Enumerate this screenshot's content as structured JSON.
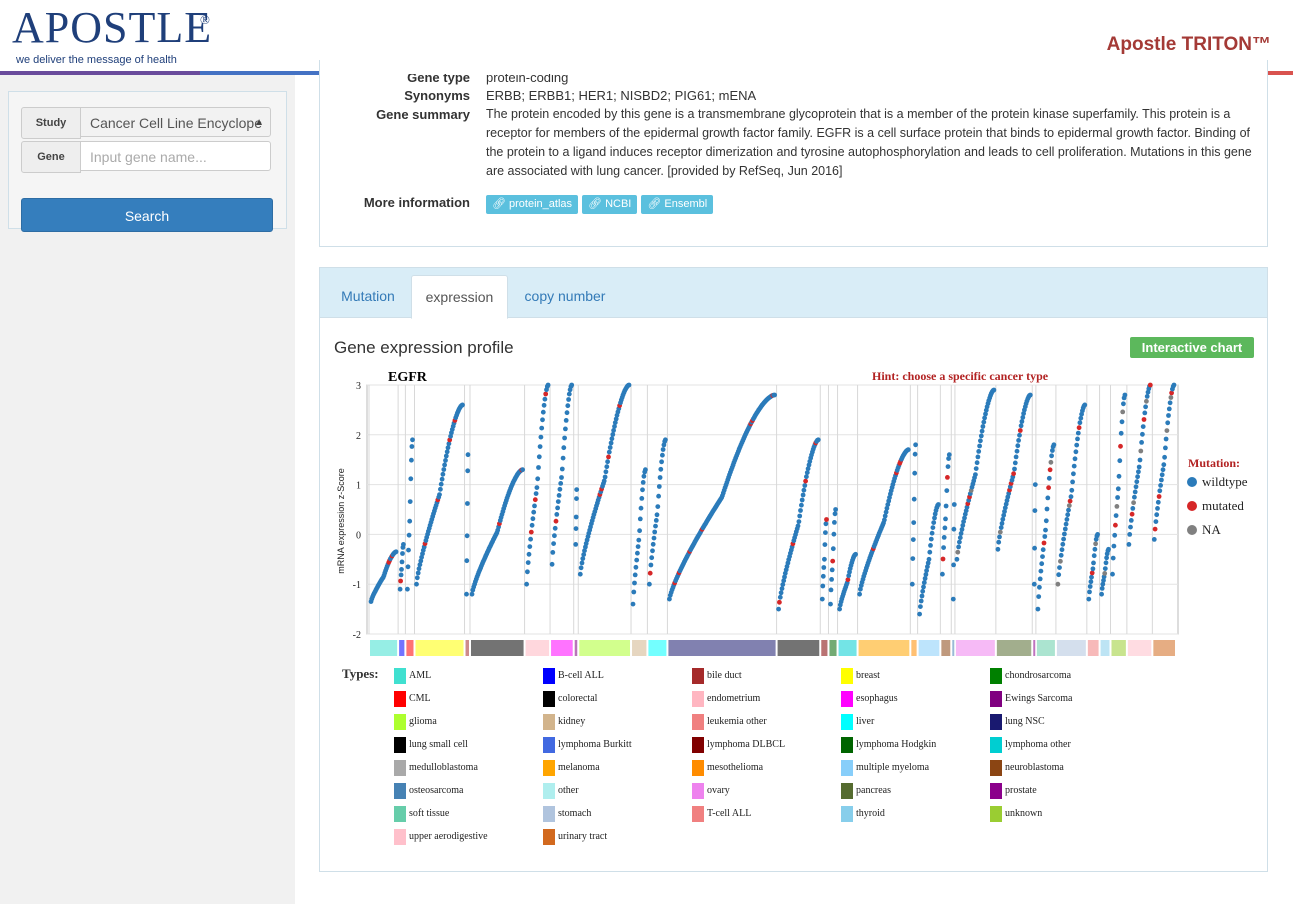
{
  "header": {
    "logo": "APOSTLE",
    "logo_mark": "®",
    "tagline": "we deliver the message of health",
    "product": "Apostle TRITON™"
  },
  "sidebar": {
    "study_label": "Study",
    "study_value": "Cancer Cell Line Encyclope",
    "gene_label": "Gene",
    "gene_placeholder": "Input gene name...",
    "search_button": "Search"
  },
  "gene_info": {
    "gene_type_key": "Gene type",
    "gene_type_val": "protein-coding",
    "synonyms_key": "Synonyms",
    "synonyms_val": "ERBB; ERBB1; HER1; NISBD2; PIG61; mENA",
    "summary_key": "Gene summary",
    "summary_val": "The protein encoded by this gene is a transmembrane glycoprotein that is a member of the protein kinase superfamily. This protein is a receptor for members of the epidermal growth factor family. EGFR is a cell surface protein that binds to epidermal growth factor. Binding of the protein to a ligand induces receptor dimerization and tyrosine autophosphorylation and leads to cell proliferation. Mutations in this gene are associated with lung cancer. [provided by RefSeq, Jun 2016]",
    "more_key": "More information",
    "links": [
      "protein_atlas",
      "NCBI",
      "Ensembl"
    ]
  },
  "tabs": {
    "items": [
      "Mutation",
      "expression",
      "copy number"
    ],
    "active": "expression"
  },
  "panel": {
    "title": "Gene expression profile",
    "interactive_button": "Interactive chart"
  },
  "chart_data": {
    "type": "scatter",
    "title": "EGFR",
    "hint": "Hint: choose a specific cancer type",
    "ylabel": "mRNA expression z-Score",
    "xlabel": "",
    "ylim": [
      -2,
      3
    ],
    "yticks": [
      "3",
      "2",
      "1",
      "0",
      "-1",
      "-2"
    ],
    "legend_title": "Mutation:",
    "legend": [
      {
        "name": "wildtype",
        "color": "#2b7bba"
      },
      {
        "name": "mutated",
        "color": "#d62728"
      },
      {
        "name": "NA",
        "color": "#808080"
      }
    ],
    "legend_placement": "right",
    "grid": true,
    "groups": [
      {
        "type": "AML",
        "n": 32,
        "lo": -1.35,
        "hi": -0.35
      },
      {
        "type": "B-cell ALL",
        "n": 8,
        "lo": -1.1,
        "hi": -0.2
      },
      {
        "type": "CML",
        "n": 10,
        "lo": -1.1,
        "hi": 1.9
      },
      {
        "type": "breast",
        "n": 55,
        "lo": -1.0,
        "hi": 2.6
      },
      {
        "type": "bile duct",
        "n": 6,
        "lo": -1.2,
        "hi": 1.6
      },
      {
        "type": "colorectal",
        "n": 60,
        "lo": -1.2,
        "hi": 1.3
      },
      {
        "type": "endometrium",
        "n": 28,
        "lo": -1.0,
        "hi": 3.0
      },
      {
        "type": "esophagus",
        "n": 26,
        "lo": -0.6,
        "hi": 3.0
      },
      {
        "type": "Ewings Sarcoma",
        "n": 5,
        "lo": -0.2,
        "hi": 0.9
      },
      {
        "type": "glioma",
        "n": 58,
        "lo": -0.8,
        "hi": 3.0
      },
      {
        "type": "kidney",
        "n": 18,
        "lo": -1.4,
        "hi": 1.3
      },
      {
        "type": "liver",
        "n": 22,
        "lo": -1.0,
        "hi": 1.9
      },
      {
        "type": "lung NSC",
        "n": 120,
        "lo": -1.3,
        "hi": 2.8
      },
      {
        "type": "lung small cell",
        "n": 48,
        "lo": -1.5,
        "hi": 1.9
      },
      {
        "type": "lymphoma DLBCL",
        "n": 9,
        "lo": -1.3,
        "hi": 0.3
      },
      {
        "type": "lymphoma Hodgkin",
        "n": 10,
        "lo": -1.4,
        "hi": 0.5
      },
      {
        "type": "lymphoma other",
        "n": 22,
        "lo": -1.5,
        "hi": -0.4
      },
      {
        "type": "melanoma",
        "n": 58,
        "lo": -1.2,
        "hi": 1.7
      },
      {
        "type": "mesothelioma",
        "n": 8,
        "lo": -1.0,
        "hi": 1.8
      },
      {
        "type": "multiple myeloma",
        "n": 25,
        "lo": -1.6,
        "hi": 0.6
      },
      {
        "type": "neuroblastoma",
        "n": 12,
        "lo": -0.8,
        "hi": 1.6
      },
      {
        "type": "osteosarcoma",
        "n": 4,
        "lo": -1.3,
        "hi": 0.6
      },
      {
        "type": "ovary",
        "n": 45,
        "lo": -0.5,
        "hi": 2.9
      },
      {
        "type": "pancreas",
        "n": 40,
        "lo": -0.3,
        "hi": 2.8
      },
      {
        "type": "prostate",
        "n": 4,
        "lo": -1.0,
        "hi": 1.0
      },
      {
        "type": "soft tissue",
        "n": 22,
        "lo": -1.5,
        "hi": 1.8
      },
      {
        "type": "stomach",
        "n": 34,
        "lo": -1.0,
        "hi": 2.6
      },
      {
        "type": "T-cell ALL",
        "n": 14,
        "lo": -1.3,
        "hi": 0.0
      },
      {
        "type": "thyroid",
        "n": 12,
        "lo": -1.2,
        "hi": -0.3
      },
      {
        "type": "unknown",
        "n": 18,
        "lo": -0.8,
        "hi": 2.8
      },
      {
        "type": "upper aerodigestive",
        "n": 28,
        "lo": -0.2,
        "hi": 3.0
      },
      {
        "type": "urinary tract",
        "n": 26,
        "lo": -0.1,
        "hi": 3.0
      }
    ]
  },
  "types_legend": {
    "title": "Types:",
    "items": [
      {
        "name": "AML",
        "color": "#40e0d0"
      },
      {
        "name": "B-cell ALL",
        "color": "#0000ff"
      },
      {
        "name": "bile duct",
        "color": "#a52a2a"
      },
      {
        "name": "breast",
        "color": "#ffff00"
      },
      {
        "name": "chondrosarcoma",
        "color": "#008000"
      },
      {
        "name": "CML",
        "color": "#ff0000"
      },
      {
        "name": "colorectal",
        "color": "#000000"
      },
      {
        "name": "endometrium",
        "color": "#ffb6c1"
      },
      {
        "name": "esophagus",
        "color": "#ff00ff"
      },
      {
        "name": "Ewings Sarcoma",
        "color": "#800080"
      },
      {
        "name": "glioma",
        "color": "#adff2f"
      },
      {
        "name": "kidney",
        "color": "#d2b48c"
      },
      {
        "name": "leukemia other",
        "color": "#f08080"
      },
      {
        "name": "liver",
        "color": "#00ffff"
      },
      {
        "name": "lung NSC",
        "color": "#191970"
      },
      {
        "name": "lung small cell",
        "color": "#000000"
      },
      {
        "name": "lymphoma Burkitt",
        "color": "#4169e1"
      },
      {
        "name": "lymphoma DLBCL",
        "color": "#800000"
      },
      {
        "name": "lymphoma Hodgkin",
        "color": "#006400"
      },
      {
        "name": "lymphoma other",
        "color": "#00ced1"
      },
      {
        "name": "medulloblastoma",
        "color": "#a9a9a9"
      },
      {
        "name": "melanoma",
        "color": "#ffa500"
      },
      {
        "name": "mesothelioma",
        "color": "#ff8c00"
      },
      {
        "name": "multiple myeloma",
        "color": "#87cefa"
      },
      {
        "name": "neuroblastoma",
        "color": "#8b4513"
      },
      {
        "name": "osteosarcoma",
        "color": "#4682b4"
      },
      {
        "name": "other",
        "color": "#afeeee"
      },
      {
        "name": "ovary",
        "color": "#ee82ee"
      },
      {
        "name": "pancreas",
        "color": "#556b2f"
      },
      {
        "name": "prostate",
        "color": "#8b008b"
      },
      {
        "name": "soft tissue",
        "color": "#66cdaa"
      },
      {
        "name": "stomach",
        "color": "#b0c4de"
      },
      {
        "name": "T-cell ALL",
        "color": "#f08080"
      },
      {
        "name": "thyroid",
        "color": "#87ceeb"
      },
      {
        "name": "unknown",
        "color": "#9acd32"
      },
      {
        "name": "upper aerodigestive",
        "color": "#ffc0cb"
      },
      {
        "name": "urinary tract",
        "color": "#d2691e"
      }
    ]
  },
  "colors": {
    "brand_navy": "#1f3f7a",
    "brand_red": "#a43a36",
    "primary": "#357ebd",
    "success": "#5cb85c",
    "info": "#5bc0de"
  }
}
